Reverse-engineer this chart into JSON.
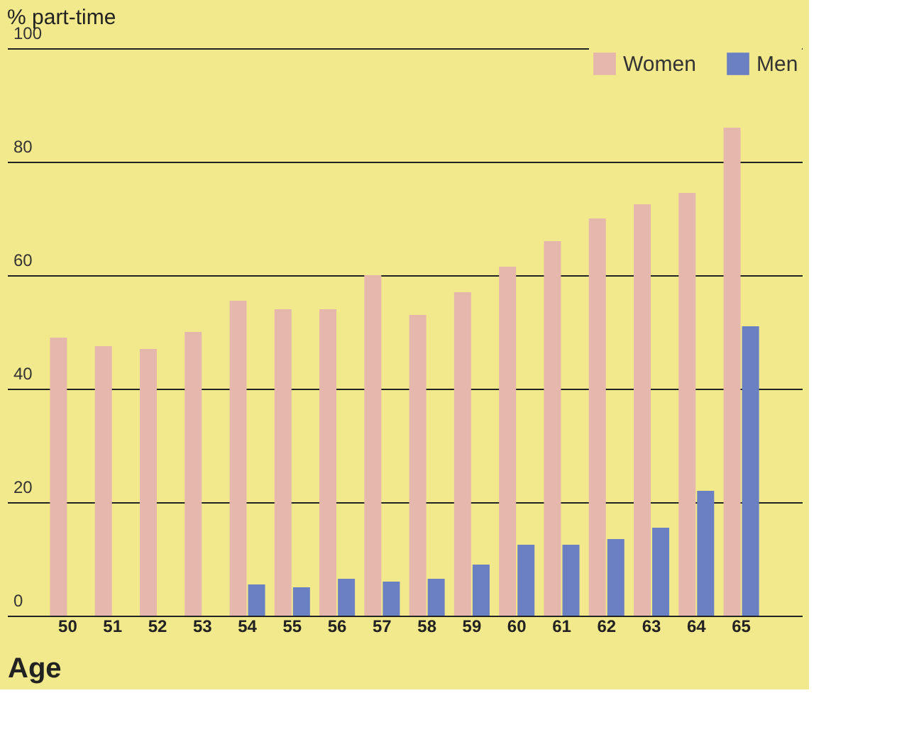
{
  "chart_data": {
    "type": "bar",
    "ylabel": "% part-time",
    "xlabel": "Age",
    "categories": [
      "50",
      "51",
      "52",
      "53",
      "54",
      "55",
      "56",
      "57",
      "58",
      "59",
      "60",
      "61",
      "62",
      "63",
      "64",
      "65"
    ],
    "series": [
      {
        "name": "Women",
        "color": "#e6b7ad",
        "values": [
          49,
          47.5,
          47,
          50,
          55.5,
          54,
          54,
          60,
          53,
          57,
          61.5,
          66,
          70,
          72.5,
          74.5,
          86
        ]
      },
      {
        "name": "Men",
        "color": "#6b80c2",
        "values": [
          null,
          null,
          null,
          null,
          5.5,
          5,
          6.5,
          6,
          6.5,
          9,
          12.5,
          12.5,
          13.5,
          15.5,
          22,
          51
        ]
      }
    ],
    "ylim": [
      0,
      100
    ],
    "yticks": [
      0,
      20,
      40,
      60,
      80,
      100
    ],
    "grid": "y",
    "legend": "top right"
  }
}
